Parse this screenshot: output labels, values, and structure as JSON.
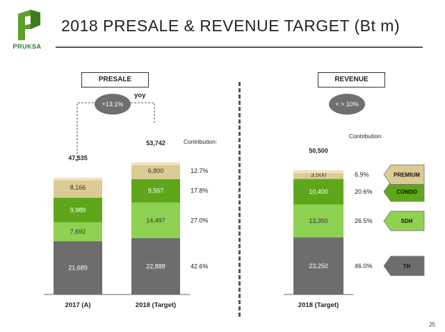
{
  "brand": {
    "logo_text": "PRUKSA"
  },
  "title": "2018 PRESALE & REVENUE TARGET (Bt m)",
  "page_number": "25",
  "presale_label": "PRESALE",
  "revenue_label": "REVENUE",
  "yoy_label": "yoy",
  "presale_growth": "+13.1%",
  "revenue_growth": "+ > 10%",
  "contribution_label": "Contribution:",
  "colors": {
    "premium": "#dccb95",
    "condo": "#5fa71a",
    "sdh": "#8fd152",
    "th": "#6d6d6d",
    "accent": "#4a9a2a"
  },
  "chart_data": [
    {
      "type": "bar",
      "title": "PRESALE",
      "categories": [
        "2017 (A)",
        "2018 (Target)"
      ],
      "totals": [
        "47,535",
        "53,742"
      ],
      "series": [
        {
          "name": "TH",
          "values": [
            21689,
            22888
          ],
          "labels": [
            "21,689",
            "22,888"
          ]
        },
        {
          "name": "SDH",
          "values": [
            7692,
            14497
          ],
          "labels": [
            "7,692",
            "14,497"
          ]
        },
        {
          "name": "CONDO",
          "values": [
            9989,
            9557
          ],
          "labels": [
            "9,989",
            "9,557"
          ]
        },
        {
          "name": "PREMIUM",
          "values": [
            8166,
            6800
          ],
          "labels": [
            "8,166",
            "6,800"
          ]
        }
      ],
      "contribution": [
        "42.6%",
        "27.0%",
        "17.8%",
        "12.7%"
      ]
    },
    {
      "type": "bar",
      "title": "REVENUE",
      "categories": [
        "2018 (Target)"
      ],
      "totals": [
        "50,500"
      ],
      "series": [
        {
          "name": "TH",
          "values": [
            23250
          ],
          "labels": [
            "23,250"
          ]
        },
        {
          "name": "SDH",
          "values": [
            13350
          ],
          "labels": [
            "13,350"
          ]
        },
        {
          "name": "CONDO",
          "values": [
            10400
          ],
          "labels": [
            "10,400"
          ]
        },
        {
          "name": "PREMIUM",
          "values": [
            3500
          ],
          "labels": [
            "3,500"
          ]
        }
      ],
      "contribution": [
        "46.0%",
        "26.5%",
        "20.6%",
        "6.9%"
      ]
    }
  ]
}
